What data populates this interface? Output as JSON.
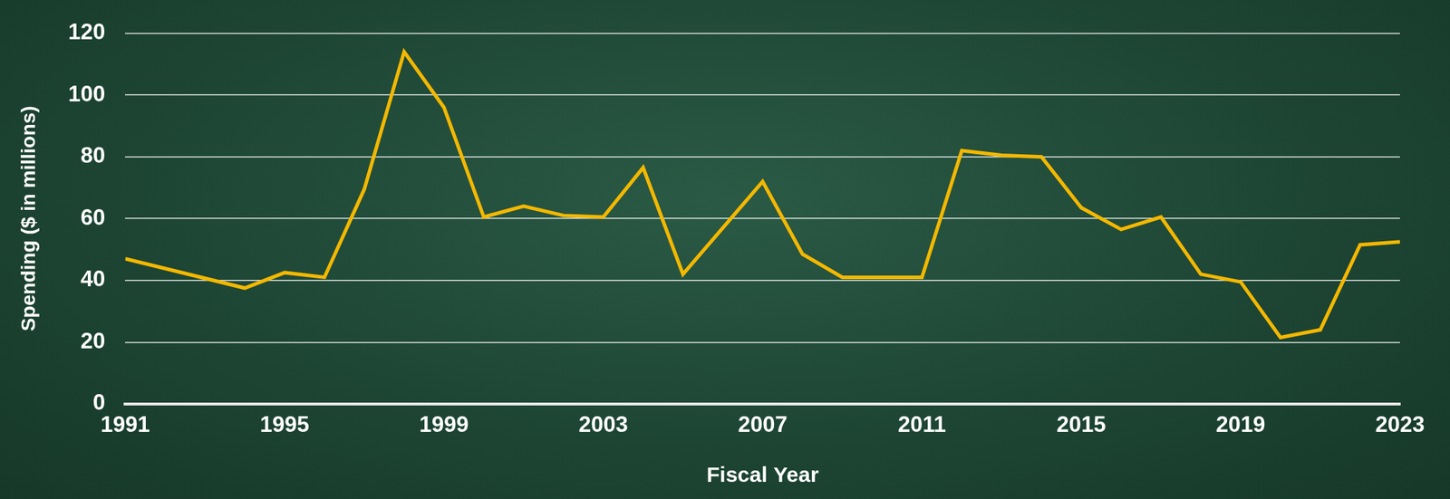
{
  "chart_data": {
    "type": "line",
    "x_label": "Fiscal Year",
    "y_label": "Spending ($ in millions)",
    "x": [
      1991,
      1992,
      1993,
      1994,
      1995,
      1996,
      1997,
      1998,
      1999,
      2000,
      2001,
      2002,
      2003,
      2004,
      2005,
      2006,
      2007,
      2008,
      2009,
      2010,
      2011,
      2012,
      2013,
      2014,
      2015,
      2016,
      2017,
      2018,
      2019,
      2020,
      2021,
      2022,
      2023
    ],
    "values": [
      47,
      null,
      null,
      37.5,
      42.5,
      41,
      69.5,
      114,
      96,
      60.5,
      64,
      61,
      60.5,
      76.5,
      42,
      null,
      72,
      48.5,
      41,
      41,
      41,
      82,
      80.5,
      80,
      63.5,
      56.5,
      60.5,
      42,
      39.5,
      21.5,
      24,
      51.5,
      52.5
    ],
    "color": "#f4b800",
    "xlim": [
      1991,
      2023
    ],
    "xticks": [
      1991,
      1995,
      1999,
      2003,
      2007,
      2011,
      2015,
      2019,
      2023
    ],
    "ylim": [
      0,
      120
    ],
    "yticks": [
      0,
      20,
      40,
      60,
      80,
      100,
      120
    ],
    "grid": true
  }
}
